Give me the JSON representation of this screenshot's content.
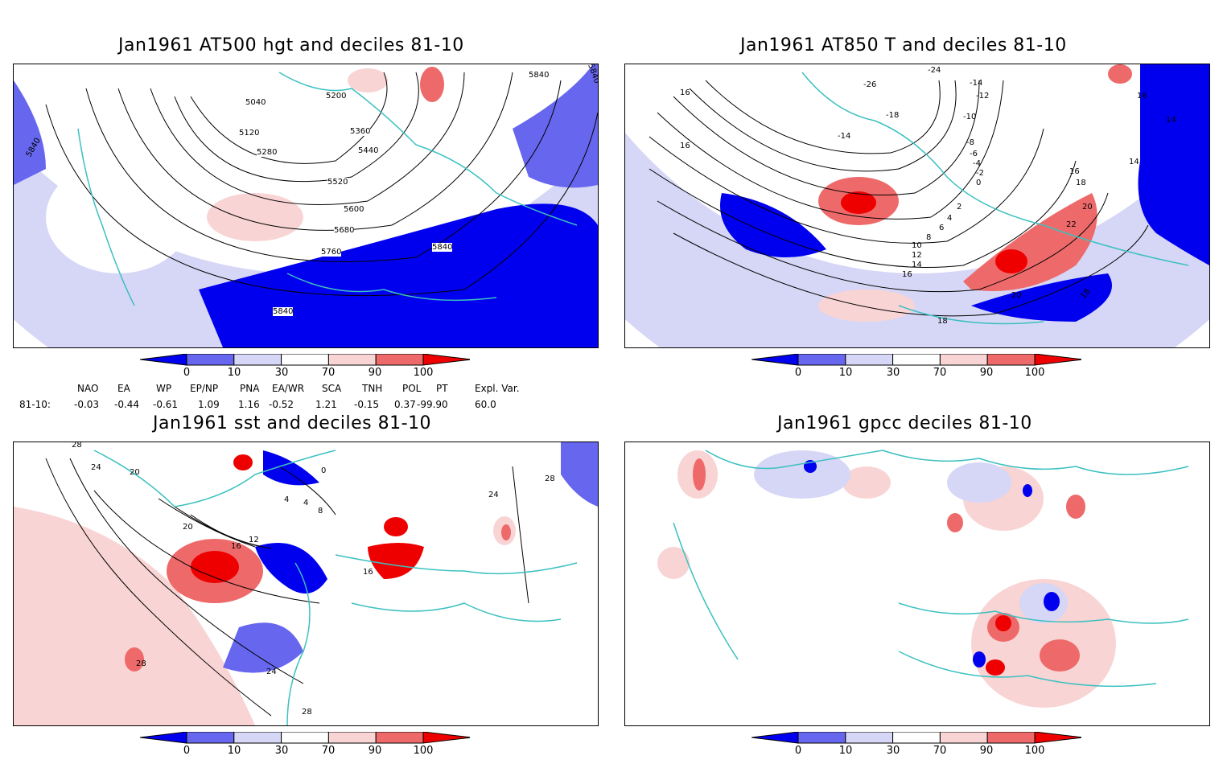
{
  "colors": {
    "deep_blue": "#0000ee",
    "mid_blue": "#6666ee",
    "light_blue": "#d6d6f6",
    "white": "#ffffff",
    "light_red": "#f9d4d4",
    "mid_red": "#ee6a6a",
    "deep_red": "#ee0000",
    "coast": "#3cc0c0"
  },
  "colorbar": {
    "labels": [
      "0",
      "10",
      "30",
      "70",
      "90",
      "100"
    ]
  },
  "panels": [
    {
      "title": "Jan1961 AT500 hgt and deciles 81-10",
      "contour_labels": [
        "5040",
        "5200",
        "5120",
        "5360",
        "5280",
        "5440",
        "5520",
        "5600",
        "5680",
        "5760",
        "5840",
        "5840",
        "5840",
        "5840",
        "5840"
      ]
    },
    {
      "title": "Jan1961 AT850 T and deciles 81-10",
      "contour_labels": [
        "-26",
        "-24",
        "-14",
        "-12",
        "-18",
        "-10",
        "-14",
        "-8",
        "-6",
        "-4",
        "-2",
        "0",
        "2",
        "4",
        "6",
        "8",
        "10",
        "12",
        "14",
        "16",
        "14",
        "16",
        "18",
        "20",
        "22",
        "16",
        "18",
        "20",
        "18",
        "16",
        "14",
        "16"
      ]
    },
    {
      "title": "Jan1961 sst and deciles 81-10",
      "contour_labels": [
        "28",
        "24",
        "20",
        "0",
        "4",
        "4",
        "8",
        "12",
        "16",
        "20",
        "24",
        "28",
        "28",
        "16",
        "24",
        "28"
      ]
    },
    {
      "title": "Jan1961 gpcc deciles 81-10",
      "contour_labels": []
    }
  ],
  "indices": {
    "headers": [
      "NAO",
      "EA",
      "WP",
      "EP/NP",
      "PNA",
      "EA/WR",
      "SCA",
      "TNH",
      "POL",
      "PT",
      "Expl. Var."
    ],
    "row_label": "81-10:",
    "values": [
      "-0.03",
      "-0.44",
      "-0.61",
      "1.09",
      "1.16",
      "-0.52",
      "1.21",
      "-0.15",
      "0.37",
      "-99.90",
      "60.0"
    ]
  }
}
